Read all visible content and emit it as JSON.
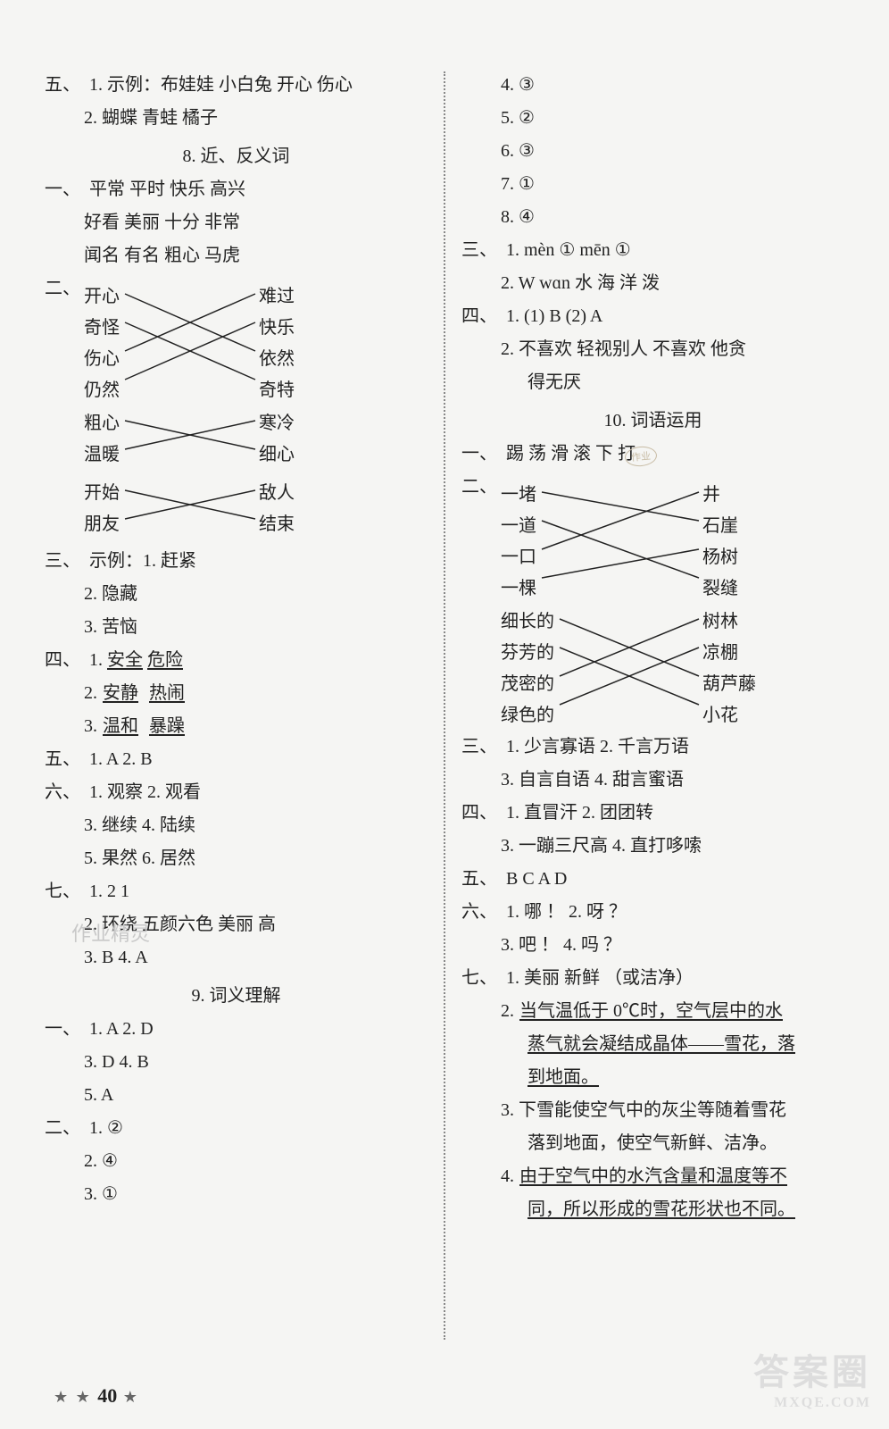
{
  "left": {
    "q5": {
      "label": "五、",
      "l1": "1.  示例：布娃娃  小白兔  开心  伤心",
      "l2": "2.  蝴蝶  青蛙  橘子"
    },
    "sec8_title": "8. 近、反义词",
    "q1": {
      "label": "一、",
      "l1": "平常  平时  快乐  高兴",
      "l2": "好看  美丽  十分  非常",
      "l3": "闻名  有名  粗心  马虎"
    },
    "q2": {
      "label": "二、",
      "m1": {
        "left": [
          "开心",
          "奇怪",
          "伤心",
          "仍然"
        ],
        "right": [
          "难过",
          "快乐",
          "依然",
          "奇特"
        ],
        "links": [
          [
            0,
            2
          ],
          [
            1,
            3
          ],
          [
            2,
            0
          ],
          [
            3,
            1
          ]
        ]
      },
      "m2": {
        "left": [
          "粗心",
          "温暖"
        ],
        "right": [
          "寒冷",
          "细心"
        ],
        "links": [
          [
            0,
            1
          ],
          [
            1,
            0
          ]
        ]
      },
      "m3": {
        "left": [
          "开始",
          "朋友"
        ],
        "right": [
          "敌人",
          "结束"
        ],
        "links": [
          [
            0,
            1
          ],
          [
            1,
            0
          ]
        ]
      }
    },
    "q3": {
      "label": "三、",
      "l1": "示例：1.  赶紧",
      "l2": "2.  隐藏",
      "l3": "3.  苦恼"
    },
    "q4": {
      "label": "四、",
      "l1_a": "1.  ",
      "l1_b": "安全",
      "l1_c": "  ",
      "l1_d": "危险",
      "l2_a": "2.  ",
      "l2_b": "安静",
      "l2_c": "  ",
      "l2_d": "热闹",
      "l3_a": "3.  ",
      "l3_b": "温和",
      "l3_c": "  ",
      "l3_d": "暴躁"
    },
    "q5b": {
      "label": "五、",
      "l1": "1.  A  2.  B"
    },
    "q6": {
      "label": "六、",
      "l1": "1.  观察  2.  观看",
      "l2": "3.  继续  4.  陆续",
      "l3": "5.  果然  6.  居然"
    },
    "q7": {
      "label": "七、",
      "l1": "1.  2  1",
      "l2": "2.  环绕  五颜六色  美丽  高",
      "l3": "3.  B  4.  A"
    },
    "sec9_title": "9. 词义理解",
    "q1b": {
      "label": "一、",
      "l1": "1.  A  2.  D",
      "l2": "3.  D  4.  B",
      "l3": "5.  A"
    },
    "q2b": {
      "label": "二、",
      "l1": "1.  ②",
      "l2": "2.  ④",
      "l3": "3.  ①"
    }
  },
  "right": {
    "cont": {
      "l1": "4.  ③",
      "l2": "5.  ②",
      "l3": "6.  ③",
      "l4": "7.  ①",
      "l5": "8.  ④"
    },
    "q3": {
      "label": "三、",
      "l1": "1.  mèn  ①  mēn  ①",
      "l2": "2.  W  wɑn  水  海  洋  泼"
    },
    "q4": {
      "label": "四、",
      "l1": "1.  (1)  B    (2)  A",
      "l2": "2.  不喜欢  轻视别人  不喜欢  他贪",
      "l3": "得无厌"
    },
    "sec10_title": "10. 词语运用",
    "q1": {
      "label": "一、",
      "l1": "踢  荡  滑  滚  下  打"
    },
    "q2": {
      "label": "二、",
      "m1": {
        "left": [
          "一堵",
          "一道",
          "一口",
          "一棵"
        ],
        "right": [
          "井",
          "石崖",
          "杨树",
          "裂缝"
        ],
        "links": [
          [
            0,
            1
          ],
          [
            1,
            3
          ],
          [
            2,
            0
          ],
          [
            3,
            2
          ]
        ]
      },
      "m2": {
        "left": [
          "细长的",
          "芬芳的",
          "茂密的",
          "绿色的"
        ],
        "right": [
          "树林",
          "凉棚",
          "葫芦藤",
          "小花"
        ],
        "links": [
          [
            0,
            2
          ],
          [
            1,
            3
          ],
          [
            2,
            0
          ],
          [
            3,
            1
          ]
        ]
      }
    },
    "q3b": {
      "label": "三、",
      "l1": "1.  少言寡语  2.  千言万语",
      "l2": "3.  自言自语  4.  甜言蜜语"
    },
    "q4b": {
      "label": "四、",
      "l1": "1.  直冒汗  2.  团团转",
      "l2": "3.  一蹦三尺高  4.  直打哆嗦"
    },
    "q5": {
      "label": "五、",
      "l1": "B  C  A  D"
    },
    "q6": {
      "label": "六、",
      "l1": "1.  哪  ！  2.  呀  ？",
      "l2": "3.  吧  ！  4.  吗  ？"
    },
    "q7": {
      "label": "七、",
      "l1": "1.  美丽  新鲜 （或洁净）",
      "l2_a": "2.  ",
      "l2_b": "当气温低于 0℃时，空气层中的水",
      "l2_c": "蒸气就会凝结成晶体——雪花，落",
      "l2_d": "到地面。",
      "l3": "3.  下雪能使空气中的灰尘等随着雪花",
      "l3b": "落到地面，使空气新鲜、洁净。",
      "l4_a": "4.  ",
      "l4_b": "由于空气中的水汽含量和温度等不",
      "l4_c": "同，所以形成的雪花形状也不同。"
    }
  },
  "footer_stars": "★ ★",
  "footer_page": "40",
  "footer_tail": "★",
  "wm_tl": "作业精灵",
  "wm_br_main": "答案圈",
  "wm_br_sub": "MXQE.COM",
  "stamp_text": "作业"
}
